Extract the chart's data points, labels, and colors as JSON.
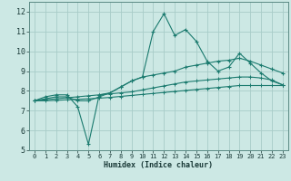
{
  "x": [
    0,
    1,
    2,
    3,
    4,
    5,
    6,
    7,
    8,
    9,
    10,
    11,
    12,
    13,
    14,
    15,
    16,
    17,
    18,
    19,
    20,
    21,
    22,
    23
  ],
  "line1": [
    7.5,
    7.7,
    7.8,
    7.8,
    7.2,
    5.3,
    7.8,
    7.9,
    8.2,
    8.5,
    8.7,
    11.0,
    11.9,
    10.8,
    11.1,
    10.5,
    9.5,
    9.0,
    9.2,
    9.9,
    9.4,
    8.9,
    8.5,
    8.3
  ],
  "line2": [
    7.5,
    7.6,
    7.7,
    7.7,
    7.5,
    7.5,
    7.7,
    7.9,
    8.2,
    8.5,
    8.7,
    8.8,
    8.9,
    9.0,
    9.2,
    9.3,
    9.4,
    9.5,
    9.55,
    9.65,
    9.5,
    9.3,
    9.1,
    8.9
  ],
  "line3": [
    7.5,
    7.55,
    7.6,
    7.65,
    7.7,
    7.75,
    7.8,
    7.85,
    7.9,
    7.95,
    8.05,
    8.15,
    8.25,
    8.35,
    8.45,
    8.5,
    8.55,
    8.6,
    8.65,
    8.7,
    8.7,
    8.65,
    8.55,
    8.3
  ],
  "line4": [
    7.5,
    7.5,
    7.52,
    7.55,
    7.57,
    7.6,
    7.63,
    7.67,
    7.72,
    7.77,
    7.82,
    7.87,
    7.92,
    7.97,
    8.02,
    8.07,
    8.12,
    8.17,
    8.22,
    8.27,
    8.27,
    8.27,
    8.27,
    8.27
  ],
  "bg_color": "#cce8e4",
  "grid_color": "#a8ccc8",
  "line_color": "#1a7a6e",
  "xlabel": "Humidex (Indice chaleur)",
  "ylim": [
    5,
    12.5
  ],
  "xlim": [
    -0.5,
    23.5
  ],
  "yticks": [
    5,
    6,
    7,
    8,
    9,
    10,
    11,
    12
  ],
  "xticks": [
    0,
    1,
    2,
    3,
    4,
    5,
    6,
    7,
    8,
    9,
    10,
    11,
    12,
    13,
    14,
    15,
    16,
    17,
    18,
    19,
    20,
    21,
    22,
    23
  ]
}
